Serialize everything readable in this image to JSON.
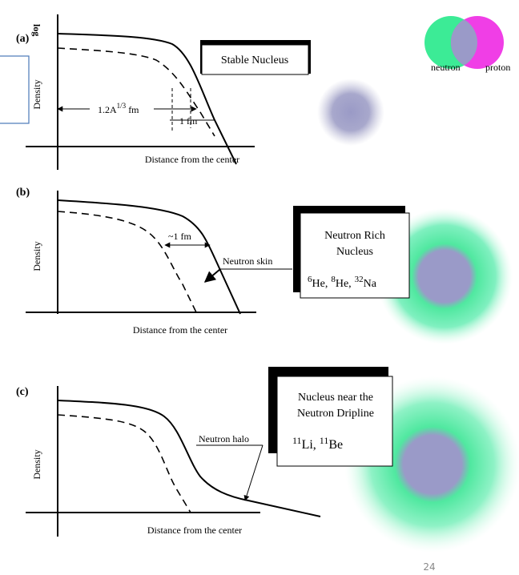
{
  "legend": [
    "neutron",
    "proton"
  ],
  "panels": [
    {
      "label": "(a)",
      "y_axis": "Density",
      "y_axis_extra": "log",
      "x_axis": "Distance from the center",
      "radius": {
        "base": "1.2A",
        "sup": "1/3",
        "unit": "fm"
      },
      "surface": "1 fm",
      "box": [
        "Stable Nucleus"
      ]
    },
    {
      "label": "(b)",
      "y_axis": "Density",
      "x_axis": "Distance from the center",
      "width": "~1 fm",
      "note": "Neutron skin",
      "box": [
        "Neutron Rich",
        "Nucleus"
      ],
      "isotopes": [
        {
          "sup": "6",
          "text": "He,"
        },
        {
          "sup": "8",
          "text": "He,"
        },
        {
          "sup": "32",
          "text": "Na"
        }
      ]
    },
    {
      "label": "(c)",
      "y_axis": "Density",
      "x_axis": "Distance from the center",
      "note": "Neutron halo",
      "box": [
        "Nucleus near the",
        "Neutron Dripline"
      ],
      "isotopes": [
        {
          "sup": "11",
          "text": "Li,"
        },
        {
          "sup": "11",
          "text": "Be"
        }
      ]
    }
  ],
  "page_number": "24"
}
